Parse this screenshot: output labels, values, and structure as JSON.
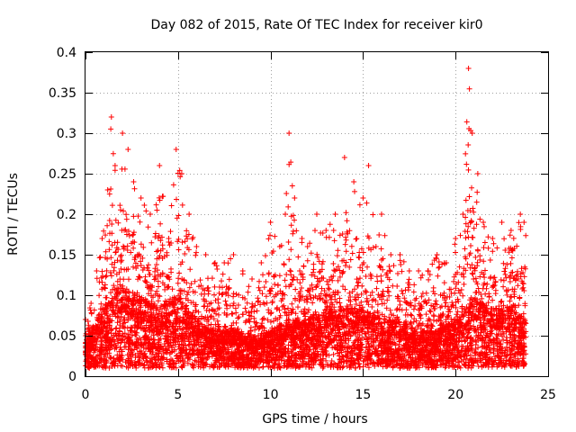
{
  "chart_data": {
    "type": "scatter",
    "title": "Day 082 of 2015, Rate Of TEC Index for receiver kir0",
    "xlabel": "GPS time / hours",
    "ylabel": "ROTI / TECUs",
    "xlim": [
      0,
      25
    ],
    "ylim": [
      0,
      0.4
    ],
    "x_ticks": [
      "0",
      "5",
      "10",
      "15",
      "20",
      "25"
    ],
    "y_ticks": [
      "0",
      "0.05",
      "0.1",
      "0.15",
      "0.2",
      "0.25",
      "0.3",
      "0.35",
      "0.4"
    ],
    "grid": true,
    "marker": "+",
    "color": "#ff0000",
    "envelope_upper": {
      "x": [
        0.0,
        0.3,
        0.6,
        0.9,
        1.2,
        1.4,
        1.6,
        2.0,
        2.3,
        2.6,
        3.0,
        3.5,
        4.0,
        4.5,
        4.9,
        5.2,
        5.6,
        6.0,
        6.5,
        7.0,
        7.5,
        8.0,
        8.5,
        9.0,
        9.5,
        10.0,
        10.5,
        10.8,
        11.0,
        11.3,
        11.7,
        12.0,
        12.5,
        13.0,
        13.5,
        14.0,
        14.5,
        15.0,
        15.3,
        15.7,
        16.0,
        16.5,
        17.0,
        17.5,
        18.0,
        18.5,
        19.0,
        19.5,
        20.0,
        20.4,
        20.7,
        20.9,
        21.2,
        21.5,
        22.0,
        22.5,
        23.0,
        23.5,
        23.7
      ],
      "y": [
        0.07,
        0.09,
        0.13,
        0.17,
        0.23,
        0.32,
        0.26,
        0.3,
        0.28,
        0.24,
        0.22,
        0.2,
        0.26,
        0.17,
        0.28,
        0.25,
        0.2,
        0.16,
        0.15,
        0.14,
        0.14,
        0.15,
        0.13,
        0.12,
        0.14,
        0.19,
        0.16,
        0.2,
        0.3,
        0.22,
        0.17,
        0.16,
        0.2,
        0.18,
        0.2,
        0.27,
        0.24,
        0.22,
        0.26,
        0.16,
        0.2,
        0.15,
        0.15,
        0.13,
        0.13,
        0.13,
        0.15,
        0.14,
        0.17,
        0.2,
        0.38,
        0.3,
        0.25,
        0.19,
        0.17,
        0.19,
        0.18,
        0.2,
        0.19
      ],
      "note_max": 0.38
    },
    "envelope_typical": {
      "x": [
        0.0,
        1.0,
        2.0,
        3.0,
        4.0,
        5.0,
        6.0,
        7.0,
        8.0,
        9.0,
        10.0,
        11.0,
        12.0,
        13.0,
        14.0,
        15.0,
        16.0,
        17.0,
        18.0,
        19.0,
        20.0,
        21.0,
        22.0,
        23.0,
        23.7
      ],
      "y": [
        0.03,
        0.06,
        0.08,
        0.07,
        0.06,
        0.07,
        0.05,
        0.04,
        0.04,
        0.035,
        0.04,
        0.05,
        0.05,
        0.06,
        0.06,
        0.06,
        0.05,
        0.05,
        0.04,
        0.04,
        0.05,
        0.07,
        0.06,
        0.06,
        0.05
      ]
    },
    "envelope_lower": 0.01,
    "x_coverage": [
      0.0,
      23.8
    ]
  }
}
